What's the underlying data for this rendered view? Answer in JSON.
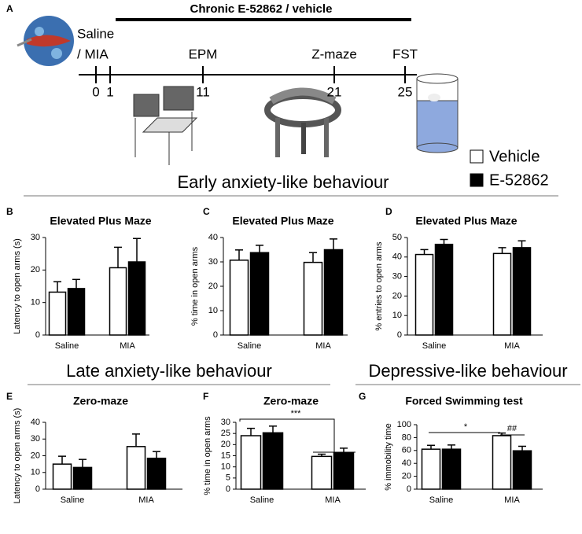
{
  "figure": {
    "panel": "A",
    "treatment": "Chronic E-52862 / vehicle",
    "induction": [
      "Saline",
      "/ MIA"
    ],
    "timeline": {
      "days": [
        0,
        1,
        11,
        21,
        25
      ],
      "tests": [
        "EPM",
        "Z-maze",
        "FST"
      ]
    },
    "legend": [
      {
        "name": "Vehicle",
        "color": "#ffffff"
      },
      {
        "name": "E-52862",
        "color": "#000000"
      }
    ],
    "headings": [
      "Early anxiety-like behaviour",
      "Late anxiety-like behaviour",
      "Depressive-like behaviour"
    ]
  },
  "chart_data": [
    {
      "type": "bar",
      "panel": "B",
      "title": "Elevated Plus Maze",
      "ylabel": "Latency to open arms (s)",
      "categories": [
        "Saline",
        "MIA"
      ],
      "ylim": [
        0,
        30
      ],
      "yticks": [
        0,
        10,
        20,
        30
      ],
      "series": [
        {
          "color": "#ffffff",
          "values": [
            13.2,
            20.7
          ],
          "errors": [
            3.2,
            6.3
          ]
        },
        {
          "color": "#000000",
          "values": [
            14.3,
            22.5
          ],
          "errors": [
            2.8,
            7.2
          ]
        }
      ]
    },
    {
      "type": "bar",
      "panel": "C",
      "title": "Elevated Plus Maze",
      "ylabel": "% time in open arms",
      "categories": [
        "Saline",
        "MIA"
      ],
      "ylim": [
        0,
        40
      ],
      "yticks": [
        0,
        10,
        20,
        30,
        40
      ],
      "series": [
        {
          "color": "#ffffff",
          "values": [
            30.7,
            29.8
          ],
          "errors": [
            4.2,
            4.0
          ]
        },
        {
          "color": "#000000",
          "values": [
            33.8,
            35.0
          ],
          "errors": [
            3.0,
            4.4
          ]
        }
      ]
    },
    {
      "type": "bar",
      "panel": "D",
      "title": "Elevated Plus Maze",
      "ylabel": "% entries to open arms",
      "categories": [
        "Saline",
        "MIA"
      ],
      "ylim": [
        0,
        50
      ],
      "yticks": [
        0,
        10,
        20,
        30,
        40,
        50
      ],
      "series": [
        {
          "color": "#ffffff",
          "values": [
            41.3,
            41.8
          ],
          "errors": [
            2.5,
            3.0
          ]
        },
        {
          "color": "#000000",
          "values": [
            46.5,
            44.8
          ],
          "errors": [
            2.5,
            3.5
          ]
        }
      ]
    },
    {
      "type": "bar",
      "panel": "E",
      "title": "Zero-maze",
      "ylabel": "Latency to open arms (s)",
      "categories": [
        "Saline",
        "MIA"
      ],
      "ylim": [
        0,
        40
      ],
      "yticks": [
        0,
        10,
        20,
        30,
        40
      ],
      "series": [
        {
          "color": "#ffffff",
          "values": [
            15.0,
            25.5
          ],
          "errors": [
            4.7,
            7.5
          ]
        },
        {
          "color": "#000000",
          "values": [
            13.0,
            18.5
          ],
          "errors": [
            4.8,
            4.0
          ]
        }
      ]
    },
    {
      "type": "bar",
      "panel": "F",
      "title": "Zero-maze",
      "ylabel": "% time in open arms",
      "categories": [
        "Saline",
        "MIA"
      ],
      "ylim": [
        0,
        30
      ],
      "yticks": [
        0,
        5,
        10,
        15,
        20,
        25,
        30
      ],
      "annotations": [
        "***"
      ],
      "series": [
        {
          "color": "#ffffff",
          "values": [
            24.0,
            14.7
          ],
          "errors": [
            3.3,
            1.0
          ]
        },
        {
          "color": "#000000",
          "values": [
            25.3,
            16.2
          ],
          "errors": [
            3.0,
            2.2
          ]
        }
      ]
    },
    {
      "type": "bar",
      "panel": "G",
      "title": "Forced Swimming test",
      "ylabel": "% immobility time",
      "categories": [
        "Saline",
        "MIA"
      ],
      "ylim": [
        0,
        100
      ],
      "yticks": [
        0,
        20,
        40,
        60,
        80,
        100
      ],
      "annotations": [
        "*",
        "##"
      ],
      "series": [
        {
          "color": "#ffffff",
          "values": [
            62.0,
            83.0
          ],
          "errors": [
            6.0,
            4.0
          ]
        },
        {
          "color": "#000000",
          "values": [
            62.0,
            59.5
          ],
          "errors": [
            6.5,
            7.0
          ]
        }
      ]
    }
  ]
}
